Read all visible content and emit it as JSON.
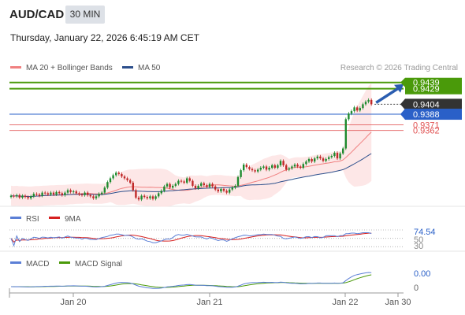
{
  "header": {
    "pair": "AUD/CAD",
    "timeframe": "30 MIN",
    "timestamp": "Thursday, January 22, 2026 6:45:19 AM CET"
  },
  "legend": {
    "items": [
      {
        "label": "MA 20 + Bollinger Bands",
        "color": "#f08080"
      },
      {
        "label": "MA 50",
        "color": "#2c4f8c"
      }
    ],
    "credit": "Research © 2026 Trading Central"
  },
  "chart_data": [
    {
      "type": "candlestick",
      "panel": "price",
      "title": "AUD/CAD 30 MIN",
      "ylim": [
        0.924,
        0.9445
      ],
      "x_tick_labels": [
        "Jan 20",
        "Jan 21",
        "Jan 22",
        "Jan 30"
      ],
      "current_price": 0.9404,
      "levels": [
        {
          "value": 0.9439,
          "label": "0.9439",
          "kind": "resistance",
          "color": "#4a9a0a"
        },
        {
          "value": 0.9429,
          "label": "0.9429",
          "kind": "resistance",
          "color": "#4a9a0a"
        },
        {
          "value": 0.9404,
          "label": "0.9404",
          "kind": "last-price",
          "color": "#333333"
        },
        {
          "value": 0.9388,
          "label": "0.9388",
          "kind": "pivot",
          "color": "#2a60c8"
        },
        {
          "value": 0.9371,
          "label": "0.9371",
          "kind": "support",
          "color": "#e05050"
        },
        {
          "value": 0.9362,
          "label": "0.9362",
          "kind": "support",
          "color": "#e05050"
        }
      ],
      "candles_close": [
        0.9257,
        0.9256,
        0.9258,
        0.9254,
        0.9257,
        0.9255,
        0.9253,
        0.9256,
        0.926,
        0.9259,
        0.9257,
        0.9262,
        0.9261,
        0.9259,
        0.9262,
        0.9259,
        0.9263,
        0.9261,
        0.9258,
        0.9262,
        0.9266,
        0.9263,
        0.9264,
        0.9261,
        0.9259,
        0.9258,
        0.9262,
        0.9258,
        0.9256,
        0.9253,
        0.9256,
        0.926,
        0.9262,
        0.927,
        0.9279,
        0.9285,
        0.929,
        0.9294,
        0.9292,
        0.9288,
        0.9285,
        0.9282,
        0.9278,
        0.9266,
        0.9254,
        0.9251,
        0.9257,
        0.9255,
        0.9253,
        0.9256,
        0.9252,
        0.9256,
        0.9261,
        0.9265,
        0.9272,
        0.9276,
        0.927,
        0.9273,
        0.9276,
        0.9281,
        0.928,
        0.9278,
        0.9285,
        0.9281,
        0.9273,
        0.9269,
        0.9273,
        0.9277,
        0.9274,
        0.9271,
        0.9276,
        0.9272,
        0.9267,
        0.9264,
        0.9268,
        0.9265,
        0.9262,
        0.9267,
        0.927,
        0.9273,
        0.9287,
        0.9298,
        0.9307,
        0.9303,
        0.93,
        0.9298,
        0.9296,
        0.9299,
        0.9302,
        0.9304,
        0.9299,
        0.9302,
        0.9306,
        0.9302,
        0.9306,
        0.9313,
        0.9306,
        0.9299,
        0.9301,
        0.9304,
        0.9307,
        0.9304,
        0.9302,
        0.9308,
        0.9312,
        0.9316,
        0.9312,
        0.9317,
        0.932,
        0.9317,
        0.9313,
        0.9316,
        0.9319,
        0.9321,
        0.9326,
        0.9317,
        0.9325,
        0.9333,
        0.938,
        0.9389,
        0.9393,
        0.9399,
        0.9394,
        0.9398,
        0.9404,
        0.9408,
        0.9411,
        0.9404
      ]
    },
    {
      "type": "line",
      "panel": "rsi",
      "series": [
        {
          "name": "RSI"
        },
        {
          "name": "9MA"
        }
      ],
      "ylim": [
        25,
        85
      ],
      "y_tick_labels": [
        "74.54",
        "50",
        "30"
      ],
      "last_value": 74.54
    },
    {
      "type": "line",
      "panel": "macd",
      "series": [
        {
          "name": "MACD"
        },
        {
          "name": "MACD Signal"
        }
      ],
      "y_tick_labels": [
        "0.00",
        "0"
      ],
      "last_value": 0.0
    }
  ],
  "rsi_legend": [
    {
      "label": "RSI",
      "color": "#5b7fd6"
    },
    {
      "label": "9MA",
      "color": "#d62020"
    }
  ],
  "macd_legend": [
    {
      "label": "MACD",
      "color": "#5b7fd6"
    },
    {
      "label": "MACD Signal",
      "color": "#4a9a0a"
    }
  ],
  "colors": {
    "bull": "#1e8a2e",
    "bear": "#c02828",
    "bollinger_fill": "#fde3e3",
    "bollinger_line": "#f08080",
    "ma50": "#2c4f8c",
    "resistance": "#4a9a0a",
    "pivot": "#2a60c8",
    "support": "#e05050",
    "arrow": "#2a5db0"
  }
}
